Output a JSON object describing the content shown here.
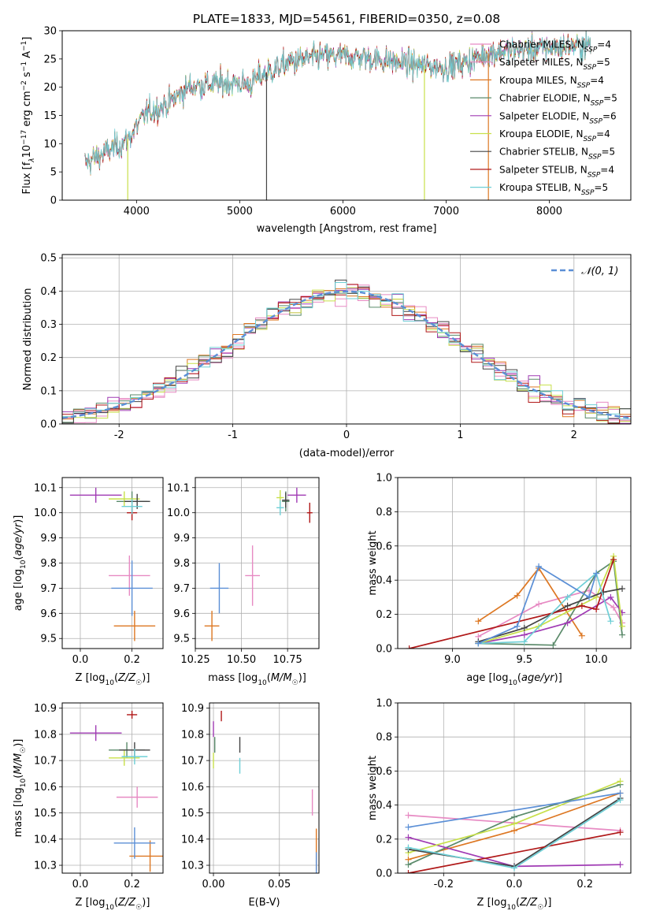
{
  "figure_title": "PLATE=1833, MJD=54561, FIBERID=0350, z=0.08",
  "colors": {
    "Chabrier MILES": "#e78ac3",
    "Salpeter MILES": "#e78ac3",
    "Kroupa MILES": "#dd7722",
    "Chabrier ELODIE": "#5a8a6a",
    "Salpeter ELODIE": "#a03bb4",
    "Kroupa ELODIE": "#c8e04a",
    "Chabrier STELIB": "#444444",
    "Salpeter STELIB": "#b01818",
    "Kroupa STELIB": "#6ecfd6",
    "gaussian": "#5b8fd6"
  },
  "chart_data": [
    {
      "type": "line",
      "title": "PLATE=1833, MJD=54561, FIBERID=0350, z=0.08",
      "xlabel": "wavelength [Angstrom, rest frame]",
      "ylabel": "Flux [f_λ 10^-17 erg cm^-2 s^-1 A^-1]",
      "ylabel_parts": {
        "a": "Flux [f",
        "b": "λ",
        "c": "10",
        "d": "−17",
        "e": " erg cm",
        "f": "−2",
        "g": " s",
        "h": "−1",
        "i": " A",
        "j": "−1",
        "k": "]"
      },
      "xlim": [
        3280,
        8790
      ],
      "ylim": [
        0,
        30
      ],
      "xticks": [
        4000,
        5000,
        6000,
        7000,
        8000
      ],
      "yticks": [
        0,
        5,
        10,
        15,
        20,
        25,
        30
      ],
      "legend_position": "top-right",
      "legend": [
        {
          "name": "Chabrier MILES",
          "n": "4"
        },
        {
          "name": "Salpeter MILES",
          "n": "5"
        },
        {
          "name": "Kroupa MILES",
          "n": "4"
        },
        {
          "name": "Chabrier ELODIE",
          "n": "5"
        },
        {
          "name": "Salpeter ELODIE",
          "n": "6"
        },
        {
          "name": "Kroupa ELODIE",
          "n": "4"
        },
        {
          "name": "Chabrier STELIB",
          "n": "5"
        },
        {
          "name": "Salpeter STELIB",
          "n": "4"
        },
        {
          "name": "Kroupa STELIB",
          "n": "5"
        }
      ],
      "legend_n_label": "N",
      "legend_n_sub": "SSP",
      "continuum": {
        "x": [
          3500,
          3700,
          3900,
          4000,
          4100,
          4300,
          4500,
          4700,
          4900,
          5100,
          5200,
          5500,
          5800,
          6000,
          6200,
          6500,
          6700,
          7000,
          7200,
          7400,
          7600,
          8000,
          8400
        ],
        "y": [
          6.5,
          8.5,
          10.5,
          13,
          15.5,
          17,
          20,
          20.5,
          20.8,
          20.5,
          22,
          24.5,
          25.5,
          25.5,
          25.3,
          24.5,
          24,
          23.5,
          24.5,
          26,
          26.5,
          27,
          27.5
        ]
      }
    },
    {
      "type": "line",
      "xlabel": "(data-model)/error",
      "ylabel": "Normed distribution",
      "xlim": [
        -2.5,
        2.5
      ],
      "ylim": [
        0,
        0.51
      ],
      "xticks": [
        -2,
        -1,
        0,
        1,
        2
      ],
      "yticks": [
        0.0,
        0.1,
        0.2,
        0.3,
        0.4,
        0.5
      ],
      "legend_position": "top-right",
      "legend": [
        {
          "name": "𝒩(0, 1)"
        }
      ],
      "reference_curve": "standard normal density"
    },
    {
      "type": "scatter",
      "xlabel": "Z [log10(Z/Z☉)]",
      "ylabel": "age [log10(age/yr)]",
      "xlim": [
        -0.07,
        0.32
      ],
      "ylim": [
        9.46,
        10.14
      ],
      "xticks": [
        0.0,
        0.2
      ],
      "yticks": [
        9.5,
        9.6,
        9.7,
        9.8,
        9.9,
        10.0,
        10.1
      ],
      "points": [
        {
          "model": "Chabrier MILES",
          "x": 0.19,
          "y": 9.75,
          "xerr": 0.08,
          "yerr": 0.08
        },
        {
          "model": "Kroupa MILES",
          "x": 0.21,
          "y": 9.55,
          "xerr": 0.08,
          "yerr": 0.06
        },
        {
          "model": "Chabrier ELODIE",
          "x": 0.2,
          "y": 10.045,
          "xerr": 0.06,
          "yerr": 0.04
        },
        {
          "model": "Salpeter ELODIE",
          "x": 0.06,
          "y": 10.07,
          "xerr": 0.1,
          "yerr": 0.03
        },
        {
          "model": "Kroupa ELODIE",
          "x": 0.17,
          "y": 10.055,
          "xerr": 0.06,
          "yerr": 0.03
        },
        {
          "model": "Chabrier STELIB",
          "x": 0.22,
          "y": 10.045,
          "xerr": 0.05,
          "yerr": 0.03
        },
        {
          "model": "Salpeter STELIB",
          "x": 0.2,
          "y": 10.0,
          "xerr": 0.02,
          "yerr": 0.03
        },
        {
          "model": "Kroupa STELIB",
          "x": 0.2,
          "y": 10.025,
          "xerr": 0.04,
          "yerr": 0.03
        },
        {
          "model": "gaussian",
          "x": 0.2,
          "y": 9.7,
          "xerr": 0.08,
          "yerr": 0.11
        }
      ]
    },
    {
      "type": "scatter",
      "xlabel": "mass [log10(M/M☉)]",
      "xlim": [
        10.25,
        10.92
      ],
      "ylim": [
        9.46,
        10.14
      ],
      "xticks": [
        10.25,
        10.5,
        10.75
      ],
      "yticks": [
        9.5,
        9.6,
        9.7,
        9.8,
        9.9,
        10.0,
        10.1
      ],
      "points": [
        {
          "model": "Chabrier MILES",
          "x": 10.56,
          "y": 9.75,
          "xerr": 0.04,
          "yerr": 0.12
        },
        {
          "model": "Kroupa MILES",
          "x": 10.34,
          "y": 9.55,
          "xerr": 0.04,
          "yerr": 0.06
        },
        {
          "model": "Chabrier ELODIE",
          "x": 10.74,
          "y": 10.045,
          "xerr": 0.02,
          "yerr": 0.04
        },
        {
          "model": "Salpeter ELODIE",
          "x": 10.8,
          "y": 10.07,
          "xerr": 0.05,
          "yerr": 0.03
        },
        {
          "model": "Kroupa ELODIE",
          "x": 10.71,
          "y": 10.06,
          "xerr": 0.02,
          "yerr": 0.03
        },
        {
          "model": "Chabrier STELIB",
          "x": 10.74,
          "y": 10.05,
          "xerr": 0.02,
          "yerr": 0.03
        },
        {
          "model": "Salpeter STELIB",
          "x": 10.87,
          "y": 10.0,
          "xerr": 0.015,
          "yerr": 0.04
        },
        {
          "model": "Kroupa STELIB",
          "x": 10.71,
          "y": 10.02,
          "xerr": 0.02,
          "yerr": 0.03
        },
        {
          "model": "gaussian",
          "x": 10.38,
          "y": 9.7,
          "xerr": 0.05,
          "yerr": 0.1
        }
      ]
    },
    {
      "type": "line",
      "xlabel": "age [log10(age/yr)]",
      "ylabel": "mass weight",
      "xlim": [
        8.62,
        10.24
      ],
      "ylim": [
        0,
        1
      ],
      "xticks": [
        9.0,
        9.5,
        10.0
      ],
      "yticks": [
        0.0,
        0.2,
        0.4,
        0.6,
        0.8,
        1.0
      ],
      "series": [
        {
          "model": "Chabrier MILES",
          "x": [
            9.18,
            9.6,
            9.95,
            10.12,
            10.18
          ],
          "y": [
            0.07,
            0.26,
            0.34,
            0.24,
            0.15
          ]
        },
        {
          "model": "Kroupa MILES",
          "x": [
            9.18,
            9.45,
            9.6,
            9.9
          ],
          "y": [
            0.16,
            0.31,
            0.47,
            0.075
          ]
        },
        {
          "model": "Chabrier ELODIE",
          "x": [
            9.18,
            9.7,
            10.0,
            10.12,
            10.18
          ],
          "y": [
            0.03,
            0.02,
            0.44,
            0.51,
            0.08
          ]
        },
        {
          "model": "Salpeter ELODIE",
          "x": [
            9.18,
            9.5,
            9.8,
            10.1,
            10.18
          ],
          "y": [
            0.03,
            0.08,
            0.15,
            0.3,
            0.21
          ]
        },
        {
          "model": "Kroupa ELODIE",
          "x": [
            9.18,
            9.6,
            10.0,
            10.12,
            10.18
          ],
          "y": [
            0.03,
            0.13,
            0.3,
            0.54,
            0.13
          ]
        },
        {
          "model": "Chabrier STELIB",
          "x": [
            9.18,
            9.5,
            9.8,
            10.05,
            10.18
          ],
          "y": [
            0.04,
            0.12,
            0.25,
            0.33,
            0.35
          ]
        },
        {
          "model": "Salpeter STELIB",
          "x": [
            8.7,
            9.9,
            10.0,
            10.12
          ],
          "y": [
            0.0,
            0.25,
            0.23,
            0.52
          ]
        },
        {
          "model": "Kroupa STELIB",
          "x": [
            9.18,
            9.5,
            9.8,
            10.0,
            10.1
          ],
          "y": [
            0.03,
            0.04,
            0.3,
            0.44,
            0.16
          ]
        },
        {
          "model": "gaussian",
          "x": [
            9.18,
            9.45,
            9.6,
            9.95,
            10.0
          ],
          "y": [
            0.03,
            0.13,
            0.48,
            0.3,
            0.44
          ]
        }
      ]
    },
    {
      "type": "scatter",
      "xlabel": "Z [log10(Z/Z☉)]",
      "ylabel": "mass [log10(M/M☉)]",
      "xlim": [
        -0.07,
        0.32
      ],
      "ylim": [
        10.27,
        10.92
      ],
      "xticks": [
        0.0,
        0.2
      ],
      "yticks": [
        10.3,
        10.4,
        10.5,
        10.6,
        10.7,
        10.8,
        10.9
      ],
      "points": [
        {
          "model": "Chabrier MILES",
          "x": 0.22,
          "y": 10.56,
          "xerr": 0.08,
          "yerr": 0.04
        },
        {
          "model": "Kroupa MILES",
          "x": 0.27,
          "y": 10.335,
          "xerr": 0.08,
          "yerr": 0.06
        },
        {
          "model": "Chabrier ELODIE",
          "x": 0.18,
          "y": 10.74,
          "xerr": 0.07,
          "yerr": 0.03
        },
        {
          "model": "Salpeter ELODIE",
          "x": 0.06,
          "y": 10.805,
          "xerr": 0.1,
          "yerr": 0.03
        },
        {
          "model": "Kroupa ELODIE",
          "x": 0.17,
          "y": 10.71,
          "xerr": 0.06,
          "yerr": 0.03
        },
        {
          "model": "Chabrier STELIB",
          "x": 0.21,
          "y": 10.74,
          "xerr": 0.06,
          "yerr": 0.03
        },
        {
          "model": "Salpeter STELIB",
          "x": 0.2,
          "y": 10.875,
          "xerr": 0.02,
          "yerr": 0.015
        },
        {
          "model": "Kroupa STELIB",
          "x": 0.21,
          "y": 10.715,
          "xerr": 0.05,
          "yerr": 0.03
        },
        {
          "model": "gaussian",
          "x": 0.21,
          "y": 10.385,
          "xerr": 0.08,
          "yerr": 0.06
        }
      ]
    },
    {
      "type": "scatter",
      "xlabel": "E(B-V)",
      "xlim": [
        -0.003,
        0.08
      ],
      "ylim": [
        10.27,
        10.92
      ],
      "xticks": [
        0.0,
        0.05
      ],
      "yticks": [
        10.3,
        10.4,
        10.5,
        10.6,
        10.7,
        10.8,
        10.9
      ],
      "points": [
        {
          "model": "Chabrier MILES",
          "x": 0.075,
          "y": 10.54,
          "yerr": 0.05
        },
        {
          "model": "Kroupa MILES",
          "x": 0.078,
          "y": 10.36,
          "yerr": 0.08
        },
        {
          "model": "Chabrier ELODIE",
          "x": 0.001,
          "y": 10.76,
          "yerr": 0.03
        },
        {
          "model": "Salpeter ELODIE",
          "x": 0.0,
          "y": 10.82,
          "yerr": 0.03
        },
        {
          "model": "Kroupa ELODIE",
          "x": 0.0,
          "y": 10.7,
          "yerr": 0.03
        },
        {
          "model": "Chabrier STELIB",
          "x": 0.02,
          "y": 10.76,
          "yerr": 0.03
        },
        {
          "model": "Salpeter STELIB",
          "x": 0.006,
          "y": 10.87,
          "yerr": 0.02
        },
        {
          "model": "Kroupa STELIB",
          "x": 0.02,
          "y": 10.68,
          "yerr": 0.03
        },
        {
          "model": "gaussian",
          "x": 0.078,
          "y": 10.31,
          "yerr": 0.04
        }
      ]
    },
    {
      "type": "line",
      "xlabel": "Z [log10(Z/Z☉)]",
      "ylabel": "mass weight",
      "xlim": [
        -0.33,
        0.33
      ],
      "ylim": [
        0,
        1
      ],
      "xticks": [
        -0.2,
        0.0,
        0.2
      ],
      "yticks": [
        0.0,
        0.2,
        0.4,
        0.6,
        0.8,
        1.0
      ],
      "series": [
        {
          "model": "Chabrier MILES",
          "x": [
            -0.3,
            0.3
          ],
          "y": [
            0.34,
            0.25
          ]
        },
        {
          "model": "Kroupa MILES",
          "x": [
            -0.3,
            0.0,
            0.3
          ],
          "y": [
            0.08,
            0.25,
            0.47
          ]
        },
        {
          "model": "Chabrier ELODIE",
          "x": [
            -0.3,
            0.0,
            0.3
          ],
          "y": [
            0.05,
            0.33,
            0.52
          ]
        },
        {
          "model": "Salpeter ELODIE",
          "x": [
            -0.3,
            0.0,
            0.3
          ],
          "y": [
            0.21,
            0.04,
            0.05
          ]
        },
        {
          "model": "Kroupa ELODIE",
          "x": [
            -0.3,
            0.0,
            0.3
          ],
          "y": [
            0.12,
            0.29,
            0.54
          ]
        },
        {
          "model": "Chabrier STELIB",
          "x": [
            -0.3,
            0.0,
            0.3
          ],
          "y": [
            0.14,
            0.04,
            0.44
          ]
        },
        {
          "model": "Salpeter STELIB",
          "x": [
            -0.3,
            0.3
          ],
          "y": [
            0.0,
            0.24
          ]
        },
        {
          "model": "Kroupa STELIB",
          "x": [
            -0.3,
            0.0,
            0.3
          ],
          "y": [
            0.15,
            0.03,
            0.43
          ]
        },
        {
          "model": "gaussian",
          "x": [
            -0.3,
            0.3
          ],
          "y": [
            0.27,
            0.47
          ]
        }
      ]
    }
  ]
}
